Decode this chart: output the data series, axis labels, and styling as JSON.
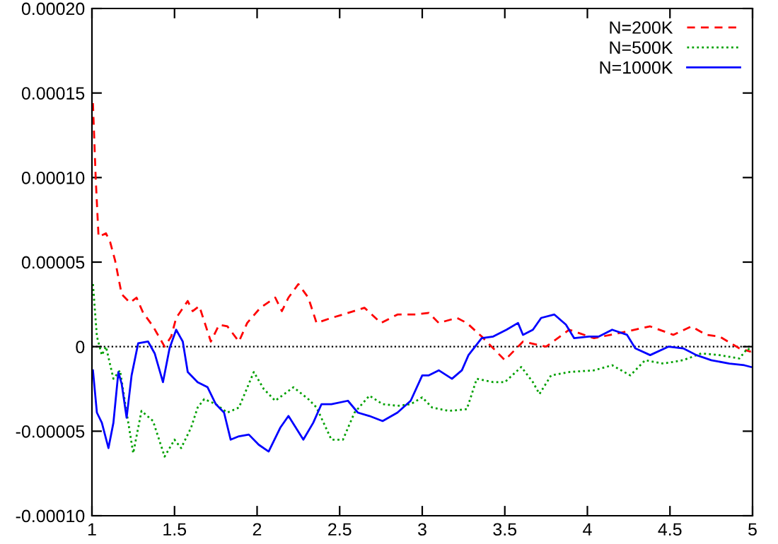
{
  "chart_data": {
    "type": "line",
    "xlim": [
      1,
      5
    ],
    "xticks": [
      1,
      1.5,
      2,
      2.5,
      3,
      3.5,
      4,
      4.5,
      5
    ],
    "ylim": [
      -0.0001,
      0.0002
    ],
    "yticks": [
      {
        "value": -0.0001,
        "label": "-0.00010"
      },
      {
        "value": -5e-05,
        "label": "-0.00005"
      },
      {
        "value": 0,
        "label": "0"
      },
      {
        "value": 5e-05,
        "label": "0.00005"
      },
      {
        "value": 0.0001,
        "label": "0.00010"
      },
      {
        "value": 0.00015,
        "label": "0.00015"
      },
      {
        "value": 0.0002,
        "label": "0.00020"
      }
    ],
    "grid": false,
    "legend": "top right",
    "marker": "none",
    "ref_lines": [
      {
        "axis": "y",
        "value": 0,
        "color": "#000000",
        "line_style": "dotted"
      }
    ],
    "series": [
      {
        "name": "N=200K",
        "color": "#ff0000",
        "line_style": "dashed",
        "x": [
          1.006,
          1.023,
          1.04,
          1.085,
          1.11,
          1.14,
          1.18,
          1.23,
          1.27,
          1.31,
          1.37,
          1.44,
          1.48,
          1.51,
          1.58,
          1.61,
          1.65,
          1.72,
          1.77,
          1.82,
          1.89,
          1.94,
          2.02,
          2.11,
          2.15,
          2.19,
          2.25,
          2.31,
          2.36,
          2.45,
          2.52,
          2.65,
          2.75,
          2.85,
          2.96,
          3.04,
          3.1,
          3.21,
          3.27,
          3.36,
          3.5,
          3.61,
          3.75,
          3.89,
          4.04,
          4.24,
          4.38,
          4.52,
          4.63,
          4.72,
          4.8,
          4.92,
          4.99
        ],
        "values": [
          0.000144,
          9.9e-05,
          6.5e-05,
          6.7e-05,
          6.2e-05,
          5.1e-05,
          3.1e-05,
          2.6e-05,
          2.9e-05,
          2e-05,
          1.2e-05,
          0.0,
          6e-06,
          1.7e-05,
          2.7e-05,
          2.1e-05,
          2.4e-05,
          3e-06,
          1.3e-05,
          1.2e-05,
          3e-06,
          1.4e-05,
          2.3e-05,
          2.9e-05,
          2.1e-05,
          2.9e-05,
          3.7e-05,
          2.9e-05,
          1.4e-05,
          1.7e-05,
          1.9e-05,
          2.3e-05,
          1.4e-05,
          1.9e-05,
          1.9e-05,
          2e-05,
          1.4e-05,
          1.7e-05,
          1.4e-05,
          6e-06,
          -8e-06,
          3e-06,
          0.0,
          1e-05,
          5e-06,
          9e-06,
          1.2e-05,
          7e-06,
          1.2e-05,
          7e-06,
          6e-06,
          -1e-06,
          -3e-06
        ]
      },
      {
        "name": "N=500K",
        "color": "#00a000",
        "line_style": "dotted",
        "x": [
          1.006,
          1.03,
          1.06,
          1.085,
          1.13,
          1.17,
          1.21,
          1.25,
          1.3,
          1.37,
          1.44,
          1.5,
          1.54,
          1.6,
          1.64,
          1.68,
          1.75,
          1.82,
          1.89,
          1.98,
          2.04,
          2.11,
          2.22,
          2.31,
          2.36,
          2.45,
          2.52,
          2.59,
          2.68,
          2.76,
          2.85,
          2.93,
          3.0,
          3.06,
          3.16,
          3.27,
          3.33,
          3.43,
          3.5,
          3.6,
          3.67,
          3.71,
          3.78,
          3.89,
          4.04,
          4.15,
          4.26,
          4.35,
          4.46,
          4.58,
          4.69,
          4.8,
          4.92,
          4.97,
          5.0
        ],
        "values": [
          3.7e-05,
          6e-06,
          -5e-06,
          0.0,
          -1.9e-05,
          -1.4e-05,
          -3.9e-05,
          -6.3e-05,
          -3.8e-05,
          -4.4e-05,
          -6.5e-05,
          -5.5e-05,
          -6e-05,
          -4.8e-05,
          -3.6e-05,
          -3.1e-05,
          -3.4e-05,
          -3.9e-05,
          -3.6e-05,
          -1.5e-05,
          -2.5e-05,
          -3.2e-05,
          -2.4e-05,
          -3.1e-05,
          -3.6e-05,
          -5.5e-05,
          -5.5e-05,
          -3.9e-05,
          -2.9e-05,
          -3.4e-05,
          -3.5e-05,
          -3.4e-05,
          -3e-05,
          -3.6e-05,
          -3.8e-05,
          -3.7e-05,
          -1.9e-05,
          -2.1e-05,
          -2.1e-05,
          -1.2e-05,
          -2.1e-05,
          -2.8e-05,
          -1.7e-05,
          -1.5e-05,
          -1.4e-05,
          -1.1e-05,
          -1.7e-05,
          -8e-06,
          -1e-05,
          -8e-06,
          -4e-06,
          -5e-06,
          -7e-06,
          -1e-06,
          -3e-06
        ]
      },
      {
        "name": "N=1000K",
        "color": "#0000ff",
        "line_style": "solid",
        "x": [
          1.006,
          1.03,
          1.06,
          1.1,
          1.13,
          1.16,
          1.18,
          1.21,
          1.24,
          1.28,
          1.34,
          1.38,
          1.43,
          1.47,
          1.51,
          1.55,
          1.58,
          1.64,
          1.7,
          1.75,
          1.8,
          1.84,
          1.89,
          1.95,
          2.01,
          2.07,
          2.14,
          2.19,
          2.28,
          2.34,
          2.39,
          2.45,
          2.55,
          2.61,
          2.68,
          2.76,
          2.85,
          2.93,
          3.0,
          3.04,
          3.1,
          3.18,
          3.24,
          3.28,
          3.36,
          3.43,
          3.51,
          3.58,
          3.61,
          3.67,
          3.72,
          3.8,
          3.87,
          3.92,
          4.01,
          4.07,
          4.15,
          4.24,
          4.29,
          4.38,
          4.49,
          4.58,
          4.66,
          4.75,
          4.86,
          4.95,
          4.99
        ],
        "values": [
          -1.4e-05,
          -3.9e-05,
          -4.5e-05,
          -6e-05,
          -4.5e-05,
          -1.5e-05,
          -2.2e-05,
          -4.2e-05,
          -1.7e-05,
          2e-06,
          3e-06,
          -4e-06,
          -2.1e-05,
          -1e-06,
          1e-05,
          3e-06,
          -1.5e-05,
          -2.1e-05,
          -2.4e-05,
          -3.4e-05,
          -3.9e-05,
          -5.5e-05,
          -5.3e-05,
          -5.2e-05,
          -5.8e-05,
          -6.2e-05,
          -4.8e-05,
          -4.1e-05,
          -5.5e-05,
          -4.5e-05,
          -3.4e-05,
          -3.4e-05,
          -3.2e-05,
          -3.9e-05,
          -4.1e-05,
          -4.4e-05,
          -3.9e-05,
          -3.2e-05,
          -1.7e-05,
          -1.7e-05,
          -1.4e-05,
          -1.9e-05,
          -1.4e-05,
          -5e-06,
          5e-06,
          6e-06,
          1e-05,
          1.4e-05,
          7e-06,
          1e-05,
          1.7e-05,
          1.9e-05,
          1.3e-05,
          5e-06,
          6e-06,
          6e-06,
          1e-05,
          7e-06,
          -1e-06,
          -5e-06,
          0.0,
          -1e-06,
          -5e-06,
          -8e-06,
          -1e-05,
          -1.1e-05,
          -1.2e-05
        ]
      }
    ]
  }
}
